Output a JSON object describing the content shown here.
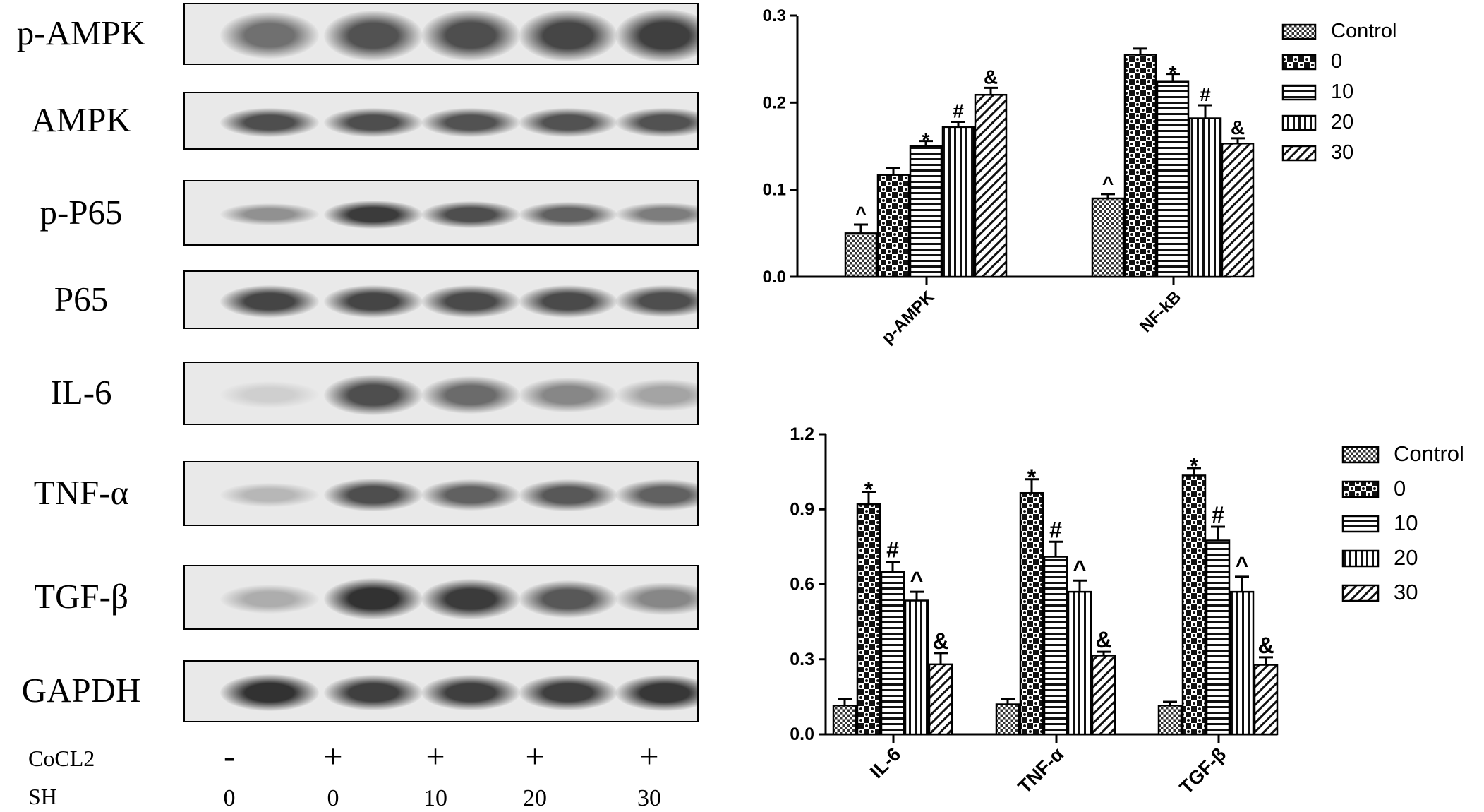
{
  "blot": {
    "rows": [
      {
        "label": "p-AMPK",
        "intensity": [
          0.62,
          0.78,
          0.8,
          0.84,
          0.88
        ],
        "height": 0.9
      },
      {
        "label": "AMPK",
        "intensity": [
          0.8,
          0.8,
          0.78,
          0.78,
          0.78
        ],
        "height": 0.55
      },
      {
        "label": "p-P65",
        "intensity": [
          0.45,
          0.9,
          0.8,
          0.7,
          0.55
        ],
        "height": 0.45
      },
      {
        "label": "P65",
        "intensity": [
          0.85,
          0.85,
          0.82,
          0.82,
          0.8
        ],
        "height": 0.6
      },
      {
        "label": "IL-6",
        "intensity": [
          0.12,
          0.8,
          0.65,
          0.5,
          0.35
        ],
        "height": 0.7
      },
      {
        "label": "TNF-α",
        "intensity": [
          0.25,
          0.8,
          0.7,
          0.75,
          0.7
        ],
        "height": 0.55
      },
      {
        "label": "TGF-β",
        "intensity": [
          0.3,
          0.95,
          0.9,
          0.75,
          0.5
        ],
        "height": 0.65
      },
      {
        "label": "GAPDH",
        "intensity": [
          0.95,
          0.88,
          0.88,
          0.88,
          0.92
        ],
        "height": 0.6
      }
    ],
    "treatments": [
      {
        "label": "CoCL2",
        "values": [
          "-",
          "+",
          "+",
          "+",
          "+"
        ]
      },
      {
        "label": "SH",
        "values": [
          "0",
          "0",
          "10",
          "20",
          "30"
        ]
      }
    ]
  },
  "chart_data": [
    {
      "type": "bar",
      "categories": [
        "p-AMPK",
        "NF-kB"
      ],
      "series": [
        {
          "name": "Control",
          "values": [
            0.05,
            0.09
          ],
          "errors": [
            0.01,
            0.005
          ],
          "marks": [
            "^",
            "^"
          ],
          "pattern": "dots"
        },
        {
          "name": "0",
          "values": [
            0.117,
            0.255
          ],
          "errors": [
            0.008,
            0.007
          ],
          "marks": [
            "",
            ""
          ],
          "pattern": "checker"
        },
        {
          "name": "10",
          "values": [
            0.15,
            0.224
          ],
          "errors": [
            0.006,
            0.009
          ],
          "marks": [
            "*",
            "*"
          ],
          "pattern": "hlines"
        },
        {
          "name": "20",
          "values": [
            0.172,
            0.182
          ],
          "errors": [
            0.006,
            0.015
          ],
          "marks": [
            "#",
            "#"
          ],
          "pattern": "vlines"
        },
        {
          "name": "30",
          "values": [
            0.209,
            0.153
          ],
          "errors": [
            0.008,
            0.006
          ],
          "marks": [
            "&",
            "&"
          ],
          "pattern": "diag"
        }
      ],
      "yticks": [
        "0.0",
        "0.1",
        "0.2",
        "0.3"
      ],
      "ylim": [
        0,
        0.3
      ],
      "legend": "right"
    },
    {
      "type": "bar",
      "categories": [
        "IL-6",
        "TNF-α",
        "TGF-β"
      ],
      "series": [
        {
          "name": "Control",
          "values": [
            0.115,
            0.12,
            0.115
          ],
          "errors": [
            0.025,
            0.02,
            0.015
          ],
          "marks": [
            "",
            "",
            ""
          ],
          "pattern": "dots"
        },
        {
          "name": "0",
          "values": [
            0.92,
            0.965,
            1.035
          ],
          "errors": [
            0.05,
            0.055,
            0.03
          ],
          "marks": [
            "*",
            "*",
            "*"
          ],
          "pattern": "checker"
        },
        {
          "name": "10",
          "values": [
            0.65,
            0.71,
            0.775
          ],
          "errors": [
            0.04,
            0.06,
            0.055
          ],
          "marks": [
            "#",
            "#",
            "#"
          ],
          "pattern": "hlines"
        },
        {
          "name": "20",
          "values": [
            0.535,
            0.57,
            0.57
          ],
          "errors": [
            0.035,
            0.045,
            0.06
          ],
          "marks": [
            "^",
            "^",
            "^"
          ],
          "pattern": "vlines"
        },
        {
          "name": "30",
          "values": [
            0.28,
            0.315,
            0.278
          ],
          "errors": [
            0.045,
            0.015,
            0.03
          ],
          "marks": [
            "&",
            "&",
            "&"
          ],
          "pattern": "diag"
        }
      ],
      "yticks": [
        "0.0",
        "0.3",
        "0.6",
        "0.9",
        "1.2"
      ],
      "ylim": [
        0,
        1.2
      ],
      "legend": "right"
    }
  ]
}
